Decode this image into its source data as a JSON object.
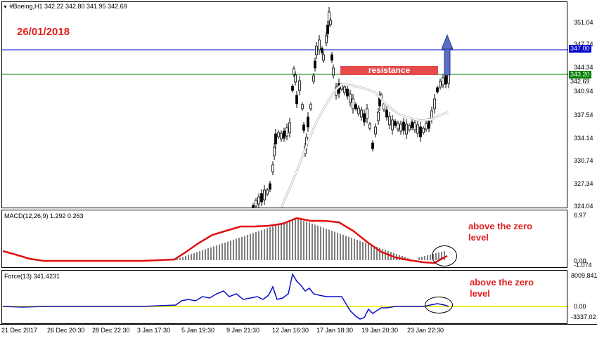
{
  "main_header": {
    "menu_icon": "triangle-down-icon",
    "text": "#Boeing,H1  342.22 342.80 341.95 342.69"
  },
  "macd_header": {
    "text": "MACD(12,26,9) 1.292 0.263"
  },
  "force_header": {
    "text": "Force(13) 341.4231"
  },
  "date_annotation": "26/01/2018",
  "resistance_label": "resistance",
  "annotations": {
    "macd_note": [
      "above the zero",
      "level"
    ],
    "force_note": [
      "above the zero",
      "level"
    ]
  },
  "price_axis": {
    "ticks": [
      "351.04",
      "347.74",
      "344.34",
      "340.94",
      "337.54",
      "334.14",
      "330.74",
      "327.34",
      "324.04"
    ],
    "tags": {
      "blue_level": "347.00",
      "green_level": "343.20",
      "current": "342.69"
    }
  },
  "macd_axis": {
    "ticks": [
      "6.97",
      "0.00",
      "-1.074"
    ]
  },
  "force_axis": {
    "ticks": [
      "8009.841",
      "0.00",
      "-3337.02"
    ]
  },
  "time_axis": {
    "labels": [
      "21 Dec 2017",
      "26 Dec 20:30",
      "28 Dec 22:30",
      "3 Jan 17:30",
      "5 Jan 19:30",
      "9 Jan 21:30",
      "12 Jan 16:30",
      "17 Jan 18:30",
      "19 Jan 20:30",
      "23 Jan 22:30"
    ]
  },
  "colors": {
    "background": "#ffffff",
    "blue_level": "#0000cc",
    "green_level": "#008000",
    "resistance_box": "#e54b4b",
    "arrow": "#5a6fc4",
    "macd_signal": "#e01010",
    "force_line": "#0a10c8",
    "zero_line_force": "#f0f020",
    "annotation_text": "#e0201e"
  }
}
